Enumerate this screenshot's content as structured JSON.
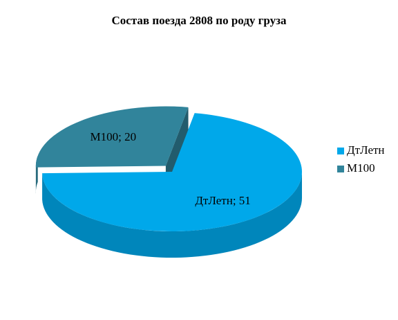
{
  "chart_data": {
    "type": "pie",
    "title": "Состав поезда 2808 по роду груза",
    "categories": [
      "ДтЛетн",
      "М100"
    ],
    "values": [
      51,
      20
    ],
    "value_labels": [
      "ДтЛетн; 51",
      "М100; 20"
    ],
    "colors": [
      "#00a8ea",
      "#31849b"
    ],
    "legend": "right",
    "three_d": true
  }
}
